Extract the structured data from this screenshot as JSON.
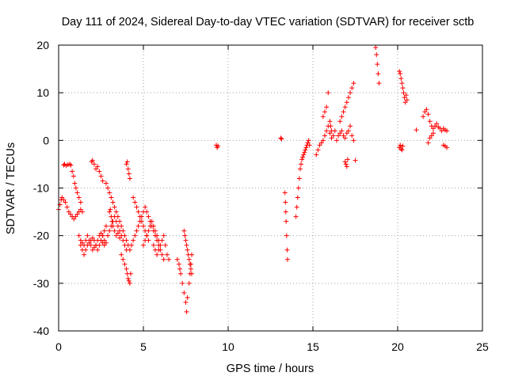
{
  "chart_data": {
    "type": "scatter",
    "title": "Day 111 of 2024, Sidereal Day-to-day VTEC variation (SDTVAR) for receiver sctb",
    "xlabel": "GPS time / hours",
    "ylabel": "SDTVAR / TECUs",
    "xlim": [
      0,
      25
    ],
    "ylim": [
      -40,
      20
    ],
    "x_ticks": [
      0,
      5,
      10,
      15,
      20,
      25
    ],
    "y_ticks": [
      -40,
      -30,
      -20,
      -10,
      0,
      10,
      20
    ],
    "x_tick_labels": [
      "0",
      "5",
      "10",
      "15",
      "20",
      "25"
    ],
    "y_tick_labels": [
      "-40",
      "-30",
      "-20",
      "-10",
      "0",
      "10",
      "20"
    ],
    "grid": true,
    "legend": "none",
    "marker": "plus",
    "color": "#ff0000",
    "series": [
      {
        "name": "SDTVAR",
        "x": [
          0.0,
          0.08,
          0.15,
          0.2,
          0.3,
          0.4,
          0.5,
          0.6,
          0.7,
          0.8,
          0.9,
          1.0,
          1.1,
          1.2,
          1.3,
          0.3,
          0.35,
          0.45,
          0.55,
          0.65,
          0.72,
          0.8,
          0.88,
          0.95,
          1.02,
          1.1,
          1.2,
          1.3,
          1.4,
          1.2,
          1.3,
          1.4,
          1.5,
          1.6,
          1.7,
          1.8,
          1.9,
          2.0,
          2.1,
          2.2,
          2.3,
          2.4,
          2.5,
          2.6,
          2.7,
          1.3,
          1.4,
          1.5,
          1.6,
          1.7,
          1.8,
          1.9,
          2.0,
          2.1,
          2.2,
          2.3,
          2.4,
          2.5,
          2.6,
          2.7,
          2.8,
          1.95,
          2.0,
          2.1,
          2.2,
          2.3,
          2.4,
          2.5,
          2.6,
          2.5,
          2.6,
          2.7,
          2.8,
          2.9,
          3.0,
          3.1,
          3.2,
          3.3,
          3.4,
          3.5,
          3.6,
          3.7,
          3.8,
          3.9,
          4.0,
          2.8,
          2.9,
          3.0,
          3.1,
          3.2,
          3.3,
          3.4,
          3.5,
          3.6,
          3.7,
          3.8,
          3.9,
          4.0,
          4.1,
          4.2,
          3.0,
          3.05,
          3.1,
          3.15,
          3.2,
          3.3,
          3.4,
          3.5,
          3.6,
          3.7,
          3.8,
          3.9,
          4.0,
          4.05,
          4.1,
          4.15,
          4.2,
          4.25,
          4.0,
          4.05,
          4.1,
          4.15,
          4.2,
          4.3,
          4.4,
          4.5,
          4.6,
          4.7,
          4.8,
          4.9,
          5.0,
          5.1,
          5.2,
          5.3,
          5.4,
          5.5,
          5.6,
          5.7,
          5.8,
          5.9,
          6.0,
          6.1,
          6.2,
          4.4,
          4.5,
          4.6,
          4.7,
          4.8,
          4.9,
          5.0,
          5.1,
          5.2,
          5.3,
          5.0,
          5.1,
          5.2,
          5.3,
          5.4,
          5.5,
          5.6,
          5.7,
          5.8,
          5.9,
          5.6,
          5.7,
          5.8,
          5.9,
          6.0,
          6.1,
          6.2,
          6.3,
          6.4,
          6.5,
          7.0,
          7.1,
          7.15,
          7.2,
          7.3,
          7.4,
          7.5,
          7.55,
          7.6,
          7.7,
          7.75,
          7.8,
          7.85,
          7.4,
          7.45,
          7.5,
          7.55,
          7.6,
          7.65,
          7.7,
          7.75,
          7.8,
          7.85,
          9.3,
          9.35,
          9.4,
          13.1,
          13.15,
          13.35,
          13.38,
          13.4,
          13.42,
          13.45,
          13.48,
          13.5,
          14.0,
          14.05,
          14.1,
          14.15,
          14.2,
          14.25,
          14.3,
          14.35,
          14.4,
          14.45,
          14.5,
          14.55,
          14.6,
          14.65,
          14.7,
          14.75,
          14.8,
          15.2,
          15.3,
          15.4,
          15.5,
          15.6,
          15.7,
          15.8,
          15.9,
          16.0,
          16.1,
          16.2,
          16.3,
          16.4,
          16.5,
          16.6,
          16.7,
          16.8,
          16.9,
          17.0,
          17.1,
          17.2,
          17.3,
          17.4,
          15.6,
          15.7,
          15.8,
          15.9,
          16.0,
          16.05,
          16.1,
          16.6,
          16.7,
          16.8,
          16.9,
          17.0,
          17.1,
          17.2,
          17.3,
          17.4,
          16.9,
          16.95,
          17.0,
          17.05,
          17.5,
          18.7,
          18.75,
          18.8,
          18.85,
          18.9,
          20.1,
          20.15,
          20.2,
          20.25,
          20.3,
          20.35,
          20.4,
          20.45,
          20.5,
          20.55,
          20.1,
          20.15,
          20.2,
          20.25,
          20.3,
          21.1,
          21.5,
          21.6,
          21.7,
          21.8,
          21.9,
          22.0,
          22.1,
          22.2,
          22.3,
          22.4,
          22.5,
          22.6,
          22.7,
          22.8,
          22.9,
          21.8,
          21.9,
          22.0,
          22.1,
          22.7,
          22.8,
          22.9
        ],
        "y": [
          -14.5,
          -13.5,
          -12.5,
          -12,
          -12.5,
          -13,
          -14,
          -15,
          -15.5,
          -16,
          -16.5,
          -16,
          -15.5,
          -15,
          -14.5,
          -5.2,
          -5.0,
          -5.3,
          -5.1,
          -5.0,
          -5.2,
          -6.5,
          -7.5,
          -9,
          -10,
          -11,
          -12,
          -13,
          -15,
          -20,
          -21,
          -21.5,
          -22,
          -21,
          -20,
          -21,
          -22,
          -23,
          -22.5,
          -22,
          -21,
          -20,
          -19.5,
          -20,
          -21,
          -22,
          -23,
          -24,
          -23,
          -22,
          -21.5,
          -21,
          -20.5,
          -21,
          -22,
          -23,
          -22,
          -21,
          -20,
          -19,
          -18,
          -4.5,
          -4.2,
          -5,
          -6,
          -5.5,
          -6.5,
          -7.5,
          -8.5,
          -21,
          -21.5,
          -22,
          -21.5,
          -20,
          -19,
          -18,
          -17,
          -16,
          -17,
          -18,
          -19,
          -20,
          -21,
          -22,
          -23,
          -9,
          -10,
          -11,
          -12,
          -13,
          -14,
          -15,
          -16,
          -17,
          -18,
          -19,
          -20,
          -21,
          -22,
          -23,
          -15,
          -14.5,
          -16,
          -17,
          -18,
          -19,
          -20,
          -19.5,
          -20.5,
          -24,
          -25,
          -26,
          -27,
          -28,
          -29,
          -29.5,
          -30,
          -28,
          -5,
          -4.5,
          -6,
          -7,
          -8,
          -22,
          -21,
          -20,
          -19,
          -18,
          -17,
          -16,
          -15,
          -14,
          -15,
          -16,
          -17,
          -18,
          -19,
          -20,
          -21,
          -22,
          -23,
          -24,
          -25,
          -12,
          -13,
          -14,
          -15,
          -16,
          -17,
          -18,
          -19,
          -20,
          -21,
          -22,
          -21,
          -20,
          -19,
          -18,
          -17,
          -18,
          -19,
          -20,
          -21,
          -22,
          -23,
          -24,
          -23,
          -22,
          -21,
          -20,
          -22,
          -24,
          -25,
          -25,
          -26,
          -27,
          -28,
          -30,
          -32,
          -34,
          -36,
          -33,
          -30,
          -28,
          -26,
          -24,
          -19,
          -20,
          -21,
          -22,
          -23,
          -24,
          -25,
          -26,
          -27,
          -28,
          -1,
          -1.5,
          -1.2,
          0.5,
          0.3,
          -11,
          -13,
          -15,
          -17,
          -20,
          -23,
          -25,
          -16,
          -14,
          -12,
          -10,
          -8,
          -6,
          -5,
          -4,
          -3.5,
          -3,
          -2.5,
          -2,
          -1.5,
          -1,
          -0.5,
          0,
          -1,
          -3,
          -2,
          -1,
          -0.5,
          0,
          1,
          2,
          3,
          1.5,
          0.5,
          1,
          2,
          0,
          1,
          1.5,
          2,
          1,
          0.5,
          1.5,
          2,
          3,
          1,
          0,
          5,
          6,
          7,
          10,
          4,
          3,
          2,
          4,
          5,
          6,
          7,
          8,
          9,
          10,
          11,
          12,
          -4.5,
          -5,
          -5.5,
          -4,
          -4.2,
          19.5,
          18,
          16,
          14,
          12,
          14.5,
          14,
          13,
          12,
          11,
          10,
          9,
          8,
          9.5,
          8.5,
          -1.5,
          -1,
          -1.8,
          -2,
          -1.2,
          2.2,
          5,
          6,
          6.5,
          5.5,
          4,
          3,
          2.5,
          3,
          3.5,
          2.8,
          2.5,
          2,
          2.5,
          2.2,
          2,
          -0.5,
          0.5,
          1,
          1.5,
          -1,
          -1.2,
          -1.5
        ]
      }
    ]
  }
}
